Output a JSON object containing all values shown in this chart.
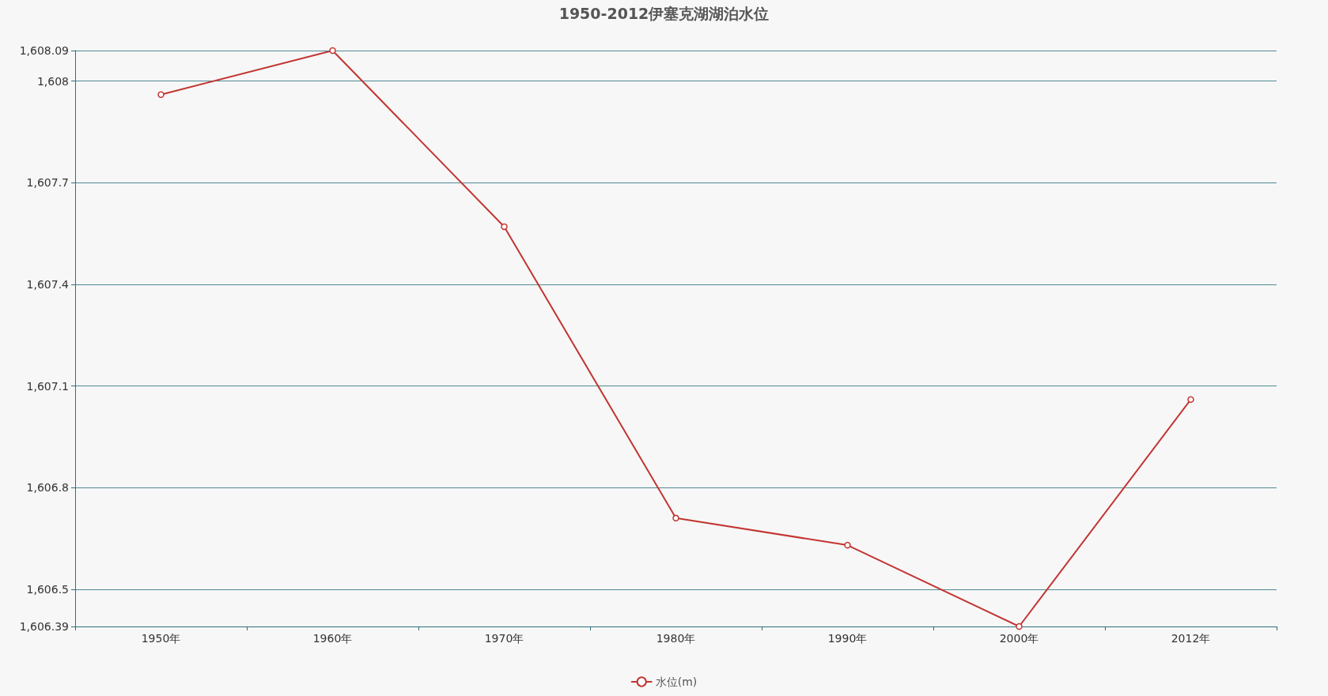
{
  "chart_data": {
    "type": "line",
    "title": "1950-2012伊塞克湖湖泊水位",
    "categories": [
      "1950年",
      "1960年",
      "1970年",
      "1980年",
      "1990年",
      "2000年",
      "2012年"
    ],
    "series": [
      {
        "name": "水位(m)",
        "color": "#c23531",
        "values": [
          1607.96,
          1608.09,
          1607.57,
          1606.71,
          1606.63,
          1606.39,
          1607.06
        ]
      }
    ],
    "ylim": [
      1606.39,
      1608.09
    ],
    "yticks": [
      {
        "value": 1606.39,
        "label": "1,606.39"
      },
      {
        "value": 1606.5,
        "label": "1,606.5"
      },
      {
        "value": 1606.8,
        "label": "1,606.8"
      },
      {
        "value": 1607.1,
        "label": "1,607.1"
      },
      {
        "value": 1607.4,
        "label": "1,607.4"
      },
      {
        "value": 1607.7,
        "label": "1,607.7"
      },
      {
        "value": 1608,
        "label": "1,608"
      },
      {
        "value": 1608.09,
        "label": "1,608.09"
      }
    ],
    "grid": "y",
    "legend": "bottom",
    "marker": "circle",
    "line_style": "solid"
  }
}
